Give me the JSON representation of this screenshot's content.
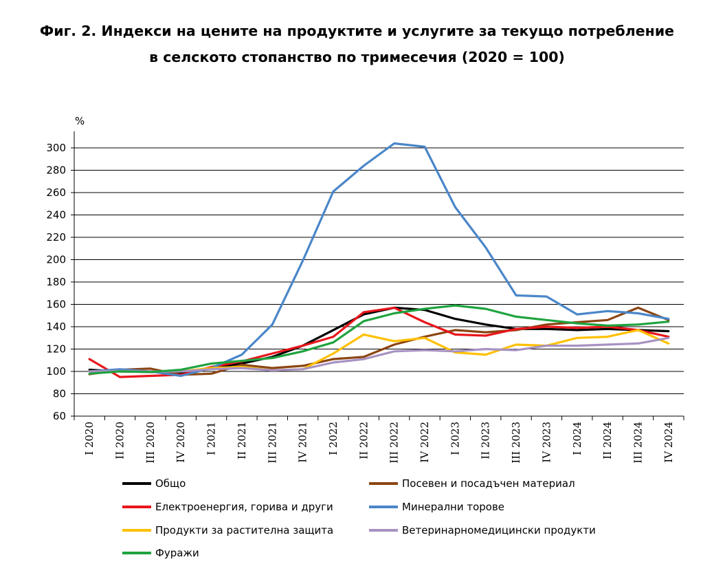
{
  "title_lines": [
    "Фиг. 2. Индекси на цените на продуктите и услугите за текущо потребление",
    "в селското стопанство по тримесечия (2020 = 100)"
  ],
  "chart_data": {
    "type": "line",
    "title": "Фиг. 2. Индекси на цените на продуктите и услугите за текущо потребление в селското стопанство по тримесечия (2020 = 100)",
    "ylabel": "%",
    "xlabel": "",
    "ylim": [
      60,
      310
    ],
    "yticks": [
      60,
      80,
      100,
      120,
      140,
      160,
      180,
      200,
      220,
      240,
      260,
      280,
      300
    ],
    "grid": "horizontal",
    "legend_position": "bottom",
    "categories": [
      "I 2020",
      "II 2020",
      "III 2020",
      "IV 2020",
      "I 2021",
      "II 2021",
      "III 2021",
      "IV 2021",
      "I 2022",
      "II 2022",
      "III 2022",
      "IV 2022",
      "I 2023",
      "II 2023",
      "III 2023",
      "IV 2023",
      "I 2024",
      "II 2024",
      "III 2024",
      "IV 2024"
    ],
    "series": [
      {
        "name": "Общо",
        "color": "#000000",
        "values": [
          101.5,
          100,
          99.5,
          99,
          103,
          107,
          113,
          123,
          137,
          151,
          157,
          155,
          147,
          142,
          138,
          138,
          137,
          138,
          137,
          136
        ]
      },
      {
        "name": "Посевен и посадъчен материал",
        "color": "#8B4513",
        "values": [
          97.5,
          101.5,
          102.5,
          97,
          98,
          106,
          103,
          105,
          111,
          113,
          124,
          131,
          137,
          135,
          137,
          142,
          144,
          146,
          157,
          146
        ]
      },
      {
        "name": "Електроенергия, горива и други",
        "color": "#E8161B",
        "values": [
          111,
          95,
          96,
          97,
          104,
          109,
          116,
          123,
          131,
          153,
          157,
          144,
          133,
          132,
          138,
          140,
          139,
          140,
          137,
          131
        ]
      },
      {
        "name": "Минерални торове",
        "color": "#4A86C8",
        "values": [
          100,
          102,
          100,
          96,
          103,
          115,
          142,
          199,
          261,
          284,
          304,
          301,
          247,
          211,
          168,
          167,
          151,
          154,
          152,
          147
        ]
      },
      {
        "name": "Продукти за растителна защита",
        "color": "#FFC000",
        "values": [
          100,
          100,
          100,
          100,
          103,
          104,
          101,
          102,
          116,
          133,
          127,
          130,
          117,
          115,
          124,
          123,
          130,
          131,
          137,
          125
        ]
      },
      {
        "name": "Ветеринарномедицински продукти",
        "color": "#A792C2",
        "values": [
          100,
          100.5,
          100,
          100,
          102,
          103,
          101,
          102,
          108,
          111,
          118,
          119,
          118,
          120,
          119,
          123,
          123,
          124,
          125,
          130
        ]
      },
      {
        "name": "Фуражи",
        "color": "#1FA33F",
        "values": [
          98,
          100,
          99.5,
          101.5,
          107,
          109.5,
          112,
          118,
          126,
          145,
          152,
          156,
          159,
          156,
          149,
          146,
          143,
          141,
          142,
          144.5
        ]
      }
    ]
  }
}
